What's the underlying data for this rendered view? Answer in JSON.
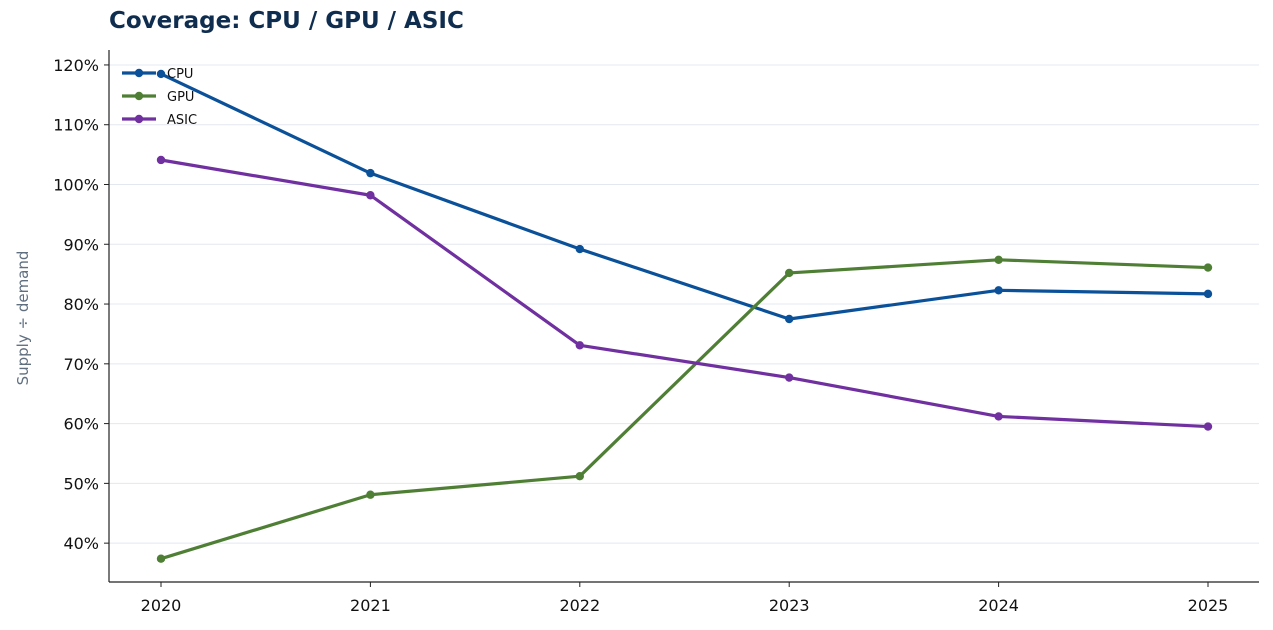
{
  "chart_data": {
    "type": "line",
    "title": "Coverage: CPU / GPU / ASIC",
    "xlabel": "",
    "ylabel": "Supply ÷ demand",
    "x": [
      "2020",
      "2021",
      "2022",
      "2023",
      "2024",
      "2025"
    ],
    "series": [
      {
        "name": "CPU",
        "color": "#0b5199",
        "values": [
          1.185,
          1.019,
          0.892,
          0.775,
          0.823,
          0.817
        ]
      },
      {
        "name": "GPU",
        "color": "#4f7f35",
        "values": [
          0.374,
          0.481,
          0.512,
          0.852,
          0.874,
          0.861
        ]
      },
      {
        "name": "ASIC",
        "color": "#7030a0",
        "values": [
          1.041,
          0.982,
          0.731,
          0.677,
          0.612,
          0.595
        ]
      }
    ],
    "yticks": [
      0.4,
      0.5,
      0.6,
      0.7,
      0.8,
      0.9,
      1.0,
      1.1,
      1.2
    ],
    "ytick_labels": [
      "40%",
      "50%",
      "60%",
      "70%",
      "80%",
      "90%",
      "100%",
      "110%",
      "120%"
    ],
    "ylim": [
      0.335,
      1.225
    ],
    "grid": "horizontal",
    "legend": "top-left",
    "y_format": "percent"
  }
}
